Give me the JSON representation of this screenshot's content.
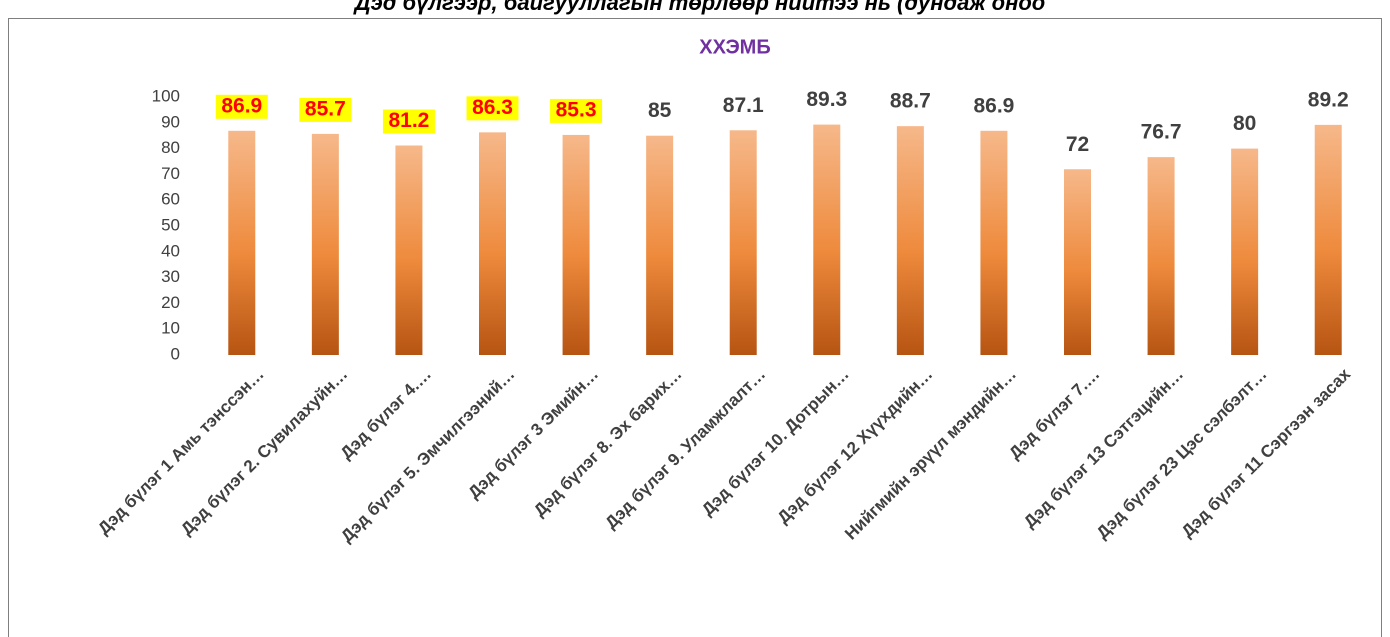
{
  "header": "Дэд бүлгээр, байгууллагын төрлөөр нийтээ нь (дундаж оноо",
  "chart_data": {
    "type": "bar",
    "title": "ХХЭМБ",
    "categories": [
      "Дэд бүлэг 1 Амь тэнссэн…",
      "Дэд бүлэг 2. Сувилахуйн…",
      "Дэд бүлэг 4.…",
      "Дэд бүлэг 5. Эмчилгээний…",
      "Дэд бүлэг 3 Эмийн…",
      "Дэд бүлэг 8. Эх барих…",
      "Дэд бүлэг 9. Уламжлалт…",
      "Дэд бүлэг 10. Дотрын…",
      "Дэд бүлэг 12 Хүүхдийн…",
      "Нийгмийн эрүүл мэндийн…",
      "Дэд бүлэг 7.…",
      "Дэд бүлэг 13 Сэтгэцийн…",
      "Дэд бүлэг 23 Цэс сэлбэлт…",
      "Дэд бүлэг 11 Сэргээн засах"
    ],
    "values": [
      86.9,
      85.7,
      81.2,
      86.3,
      85.3,
      85,
      87.1,
      89.3,
      88.7,
      86.9,
      72,
      76.7,
      80,
      89.2
    ],
    "highlight": [
      true,
      true,
      true,
      true,
      true,
      false,
      false,
      false,
      false,
      false,
      false,
      false,
      false,
      false
    ],
    "color": "#e8823a",
    "ylim": [
      0,
      100
    ],
    "yticks": [
      0,
      10,
      20,
      30,
      40,
      50,
      60,
      70,
      80,
      90,
      100
    ],
    "grid": false
  }
}
